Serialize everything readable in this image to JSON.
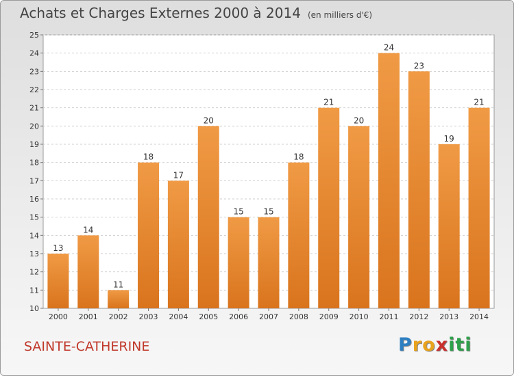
{
  "chart_data": {
    "type": "bar",
    "title": "Achats et Charges Externes 2000 à 2014",
    "subtitle": "(en milliers d'€)",
    "categories": [
      "2000",
      "2001",
      "2002",
      "2003",
      "2004",
      "2005",
      "2006",
      "2007",
      "2008",
      "2009",
      "2010",
      "2011",
      "2012",
      "2013",
      "2014"
    ],
    "values": [
      13,
      14,
      11,
      18,
      17,
      20,
      15,
      15,
      18,
      21,
      20,
      24,
      23,
      19,
      21
    ],
    "xlabel": "",
    "ylabel": "",
    "ylim": [
      10,
      25
    ],
    "yticks": [
      10,
      11,
      12,
      13,
      14,
      15,
      16,
      17,
      18,
      19,
      20,
      21,
      22,
      23,
      24,
      25
    ],
    "grid": true,
    "bar_color": "#f09a45",
    "bar_color_dark": "#d9741d"
  },
  "footer": {
    "place": "SAINTE-CATHERINE",
    "place_color": "#c0392b"
  },
  "logo": {
    "letters": [
      "P",
      "r",
      "o",
      "x",
      "i",
      "t",
      "i"
    ],
    "colors": [
      "#2e7fc1",
      "#e8a21c",
      "#e8a21c",
      "#c9302c",
      "#2ea04a",
      "#2ea04a",
      "#2ea04a"
    ]
  }
}
